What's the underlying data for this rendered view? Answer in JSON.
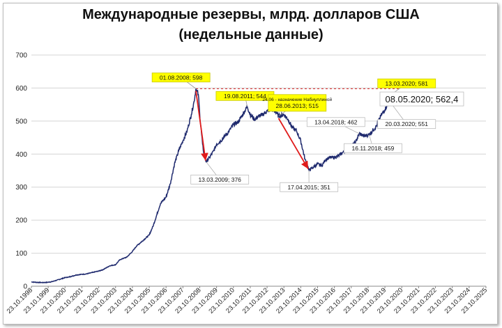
{
  "chart_data": {
    "type": "line",
    "title": "Международные резервы, млрд. долларов США",
    "subtitle": "(недельные данные)",
    "ylim": [
      0,
      700
    ],
    "yticks": [
      "0",
      "100",
      "200",
      "300",
      "400",
      "500",
      "600",
      "700"
    ],
    "x_range": [
      "1998-10-23",
      "2025-10-23"
    ],
    "xticks": [
      "23.10.1998",
      "23.10.1999",
      "23.10.2000",
      "23.10.2001",
      "23.10.2002",
      "23.10.2003",
      "23.10.2004",
      "23.10.2005",
      "23.10.2006",
      "23.10.2007",
      "23.10.2008",
      "23.10.2009",
      "23.10.2010",
      "23.10.2011",
      "23.10.2012",
      "23.10.2013",
      "23.10.2014",
      "23.10.2015",
      "23.10.2016",
      "23.10.2017",
      "23.10.2018",
      "23.10.2019",
      "23.10.2020",
      "23.10.2021",
      "23.10.2022",
      "23.10.2023",
      "23.10.2024",
      "23.10.2025"
    ],
    "grid": true,
    "series": [
      {
        "color": "#1f2a6e",
        "points": [
          [
            "1998-10-23",
            13
          ],
          [
            "1999-01-23",
            12
          ],
          [
            "1999-06-23",
            11
          ],
          [
            "1999-10-23",
            12
          ],
          [
            "2000-01-23",
            14
          ],
          [
            "2000-04-23",
            18
          ],
          [
            "2000-07-23",
            22
          ],
          [
            "2000-10-23",
            26
          ],
          [
            "2001-01-23",
            28
          ],
          [
            "2001-06-23",
            34
          ],
          [
            "2001-10-23",
            36
          ],
          [
            "2002-01-23",
            37
          ],
          [
            "2002-06-23",
            42
          ],
          [
            "2002-10-23",
            46
          ],
          [
            "2003-01-23",
            50
          ],
          [
            "2003-06-23",
            62
          ],
          [
            "2003-10-23",
            65
          ],
          [
            "2004-01-23",
            80
          ],
          [
            "2004-06-23",
            88
          ],
          [
            "2004-10-23",
            105
          ],
          [
            "2005-01-23",
            122
          ],
          [
            "2005-06-23",
            140
          ],
          [
            "2005-10-23",
            155
          ],
          [
            "2006-01-23",
            185
          ],
          [
            "2006-06-23",
            250
          ],
          [
            "2006-10-23",
            270
          ],
          [
            "2007-01-23",
            310
          ],
          [
            "2007-04-23",
            370
          ],
          [
            "2007-07-23",
            410
          ],
          [
            "2007-10-23",
            440
          ],
          [
            "2008-01-23",
            470
          ],
          [
            "2008-04-23",
            520
          ],
          [
            "2008-06-23",
            560
          ],
          [
            "2008-08-01",
            598
          ],
          [
            "2008-09-23",
            580
          ],
          [
            "2008-10-23",
            520
          ],
          [
            "2008-12-23",
            430
          ],
          [
            "2009-01-23",
            400
          ],
          [
            "2009-03-13",
            376
          ],
          [
            "2009-05-23",
            390
          ],
          [
            "2009-08-23",
            410
          ],
          [
            "2009-10-23",
            430
          ],
          [
            "2010-01-23",
            440
          ],
          [
            "2010-04-23",
            455
          ],
          [
            "2010-07-23",
            470
          ],
          [
            "2010-10-23",
            490
          ],
          [
            "2011-01-23",
            495
          ],
          [
            "2011-04-23",
            515
          ],
          [
            "2011-08-19",
            544
          ],
          [
            "2011-10-23",
            520
          ],
          [
            "2012-01-23",
            505
          ],
          [
            "2012-04-23",
            515
          ],
          [
            "2012-07-23",
            520
          ],
          [
            "2012-10-23",
            530
          ],
          [
            "2013-01-23",
            535
          ],
          [
            "2013-04-23",
            530
          ],
          [
            "2013-06-28",
            515
          ],
          [
            "2013-10-23",
            520
          ],
          [
            "2014-01-23",
            505
          ],
          [
            "2014-04-23",
            480
          ],
          [
            "2014-07-23",
            470
          ],
          [
            "2014-10-23",
            440
          ],
          [
            "2015-01-23",
            385
          ],
          [
            "2015-04-17",
            351
          ],
          [
            "2015-07-23",
            360
          ],
          [
            "2015-10-23",
            370
          ],
          [
            "2016-01-23",
            365
          ],
          [
            "2016-04-23",
            385
          ],
          [
            "2016-07-23",
            390
          ],
          [
            "2016-10-23",
            390
          ],
          [
            "2017-01-23",
            395
          ],
          [
            "2017-04-23",
            405
          ],
          [
            "2017-07-23",
            415
          ],
          [
            "2017-10-23",
            425
          ],
          [
            "2018-01-23",
            435
          ],
          [
            "2018-04-13",
            462
          ],
          [
            "2018-07-23",
            455
          ],
          [
            "2018-11-16",
            459
          ],
          [
            "2019-01-23",
            470
          ],
          [
            "2019-04-23",
            485
          ],
          [
            "2019-07-23",
            515
          ],
          [
            "2019-10-23",
            535
          ],
          [
            "2020-01-23",
            560
          ],
          [
            "2020-03-13",
            581
          ],
          [
            "2020-03-20",
            551
          ],
          [
            "2020-05-08",
            562.4
          ]
        ]
      }
    ],
    "reference_line": {
      "value": 598,
      "style": "dashed",
      "color": "#d62020"
    },
    "arrows": [
      {
        "from": "01.08.2008",
        "to": "13.03.2009",
        "color": "#e01b1b"
      },
      {
        "from": "28.06.2013",
        "to": "17.04.2015",
        "color": "#e01b1b"
      }
    ],
    "annotations": [
      {
        "date": "2008-08-01",
        "y": 598,
        "text": "01.08.2008; 598",
        "highlight": true,
        "lx": 2007.7,
        "ly": 632
      },
      {
        "date": "2009-03-13",
        "y": 376,
        "text": "13.03.2009; 376",
        "highlight": false,
        "lx": 2010.0,
        "ly": 323
      },
      {
        "date": "2011-08-19",
        "y": 544,
        "text": "19.08.2011; 544",
        "highlight": true,
        "lx": 2011.5,
        "ly": 576
      },
      {
        "date": "2013-06-28",
        "y": 515,
        "text": "28.06.2013; 515",
        "note": "24.06 - назначение Набиуллиной",
        "highlight": true,
        "lx": 2014.6,
        "ly": 555
      },
      {
        "date": "2015-04-17",
        "y": 351,
        "text": "17.04.2015; 351",
        "highlight": false,
        "lx": 2015.3,
        "ly": 300
      },
      {
        "date": "2018-04-13",
        "y": 462,
        "text": "13.04.2018; 462",
        "highlight": false,
        "lx": 2016.9,
        "ly": 497
      },
      {
        "date": "2018-11-16",
        "y": 459,
        "text": "16.11.2018; 459",
        "highlight": false,
        "lx": 2019.1,
        "ly": 418
      },
      {
        "date": "2020-03-13",
        "y": 581,
        "text": "13.03.2020; 581",
        "highlight": true,
        "lx": 2021.1,
        "ly": 614
      },
      {
        "date": "2020-03-20",
        "y": 551,
        "text": "20.03.2020; 551",
        "highlight": false,
        "lx": 2021.1,
        "ly": 491
      },
      {
        "date": "2020-05-08",
        "y": 562.4,
        "text": "08.05.2020; 562,4",
        "highlight": false,
        "big": true,
        "lx": 2022.0,
        "ly": 567
      }
    ]
  }
}
